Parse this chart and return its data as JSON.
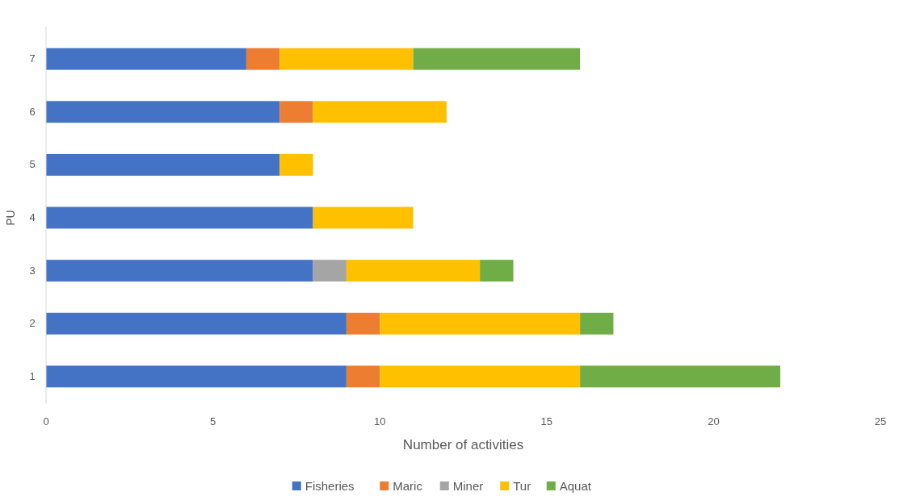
{
  "chart_data": {
    "type": "bar",
    "orientation": "horizontal",
    "stacked": true,
    "xlabel": "Number of activities",
    "ylabel": "PU",
    "categories": [
      "7",
      "6",
      "5",
      "4",
      "3",
      "2",
      "1"
    ],
    "series": [
      {
        "name": "Fisheries",
        "color": "#4472c4",
        "values": [
          6,
          7,
          7,
          8,
          8,
          9,
          9
        ]
      },
      {
        "name": "Maric",
        "color": "#ed7d31",
        "values": [
          1,
          1,
          0,
          0,
          0,
          1,
          1
        ]
      },
      {
        "name": "Miner",
        "color": "#a5a5a5",
        "values": [
          0,
          0,
          0,
          0,
          1,
          0,
          0
        ]
      },
      {
        "name": "Tur",
        "color": "#ffc000",
        "values": [
          4,
          4,
          1,
          3,
          4,
          6,
          6
        ]
      },
      {
        "name": "Aquat",
        "color": "#70ad47",
        "values": [
          5,
          0,
          0,
          0,
          1,
          1,
          6
        ]
      }
    ],
    "xlim": [
      0,
      25
    ],
    "xticks": [
      0,
      5,
      10,
      15,
      20,
      25
    ],
    "grid": false,
    "legend": "bottom"
  }
}
